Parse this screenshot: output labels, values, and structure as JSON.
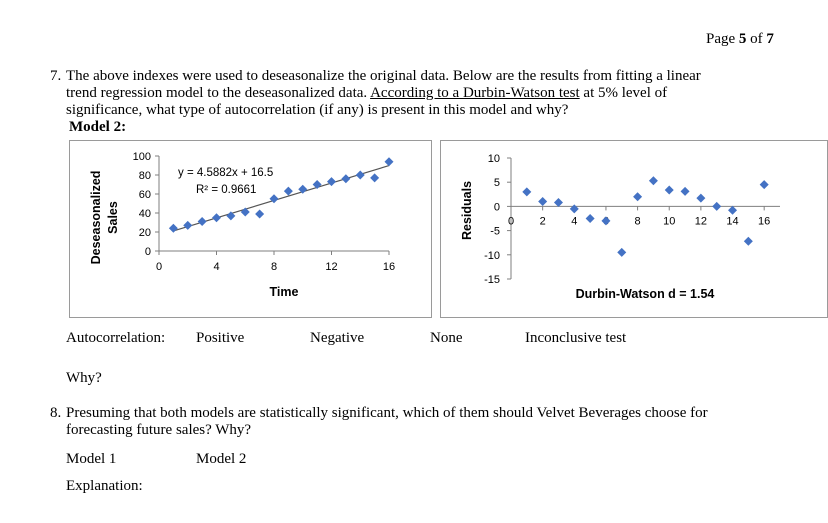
{
  "header": {
    "page_prefix": "Page ",
    "page_current": "5",
    "page_of": " of ",
    "page_total": "7"
  },
  "q7": {
    "number": "7.",
    "line1": "The above indexes were used to deseasonalize the original data. Below are the results from fitting a linear",
    "line2_pre": "trend regression model to the deseasonalized data. ",
    "line2_underlined": "According to a Durbin-Watson test",
    "line2_post": " at 5% level of",
    "line3": "significance, what type of autocorrelation (if any) is present in this model and why?",
    "model_label": "Model 2:",
    "answer_label": "Autocorrelation:",
    "options": [
      "Positive",
      "Negative",
      "None",
      "Inconclusive test"
    ],
    "why_label": "Why?"
  },
  "q8": {
    "number": "8.",
    "line1": "Presuming that both models are statistically significant, which of them should Velvet Beverages choose for",
    "line2": "forecasting future sales? Why?",
    "options": [
      "Model 1",
      "Model 2"
    ],
    "explanation_label": "Explanation:"
  },
  "chart_data": [
    {
      "type": "scatter",
      "title": "",
      "xlabel": "Time",
      "ylabel": "Deseasonalized Sales",
      "xlim": [
        0,
        16
      ],
      "ylim": [
        0,
        100
      ],
      "xticks": [
        "0",
        "4",
        "8",
        "12",
        "16"
      ],
      "xtick_values": [
        0,
        4,
        8,
        12,
        16
      ],
      "yticks": [
        "0",
        "20",
        "40",
        "60",
        "80",
        "100"
      ],
      "ytick_values": [
        0,
        20,
        40,
        60,
        80,
        100
      ],
      "equation": "y = 4.5882x + 16.5",
      "r2_label": "R² = 0.9661",
      "trendline": {
        "slope": 4.5882,
        "intercept": 16.5,
        "x_start": 1,
        "x_end": 16
      },
      "color": "#4472C4",
      "trend_color": "#555555",
      "points": [
        {
          "x": 1,
          "y": 24
        },
        {
          "x": 2,
          "y": 27
        },
        {
          "x": 3,
          "y": 31
        },
        {
          "x": 4,
          "y": 35
        },
        {
          "x": 5,
          "y": 37
        },
        {
          "x": 6,
          "y": 41
        },
        {
          "x": 7,
          "y": 39
        },
        {
          "x": 8,
          "y": 55
        },
        {
          "x": 9,
          "y": 63
        },
        {
          "x": 10,
          "y": 65
        },
        {
          "x": 11,
          "y": 70
        },
        {
          "x": 12,
          "y": 73
        },
        {
          "x": 13,
          "y": 76
        },
        {
          "x": 14,
          "y": 80
        },
        {
          "x": 15,
          "y": 77
        },
        {
          "x": 16,
          "y": 94
        }
      ]
    },
    {
      "type": "scatter",
      "title": "",
      "xlabel": "",
      "ylabel": "Residuals",
      "xlim": [
        0,
        17
      ],
      "ylim": [
        -15,
        10
      ],
      "xticks": [
        "0",
        "2",
        "4",
        "6",
        "8",
        "10",
        "12",
        "14",
        "16"
      ],
      "xtick_values": [
        0,
        2,
        4,
        6,
        8,
        10,
        12,
        14,
        16
      ],
      "yticks": [
        "-15",
        "-10",
        "-5",
        "0",
        "5",
        "10"
      ],
      "ytick_values": [
        -15,
        -10,
        -5,
        0,
        5,
        10
      ],
      "annotation": "Durbin-Watson d = 1.54",
      "color": "#4472C4",
      "points": [
        {
          "x": 1,
          "y": 3
        },
        {
          "x": 2,
          "y": 1
        },
        {
          "x": 3,
          "y": 0.8
        },
        {
          "x": 4,
          "y": -0.5
        },
        {
          "x": 5,
          "y": -2.5
        },
        {
          "x": 6,
          "y": -3
        },
        {
          "x": 7,
          "y": -9.5
        },
        {
          "x": 8,
          "y": 2
        },
        {
          "x": 9,
          "y": 5.3
        },
        {
          "x": 10,
          "y": 3.4
        },
        {
          "x": 11,
          "y": 3.1
        },
        {
          "x": 12,
          "y": 1.7
        },
        {
          "x": 13,
          "y": 0
        },
        {
          "x": 14,
          "y": -0.8
        },
        {
          "x": 15,
          "y": -7.2
        },
        {
          "x": 16,
          "y": 4.5
        }
      ]
    }
  ]
}
